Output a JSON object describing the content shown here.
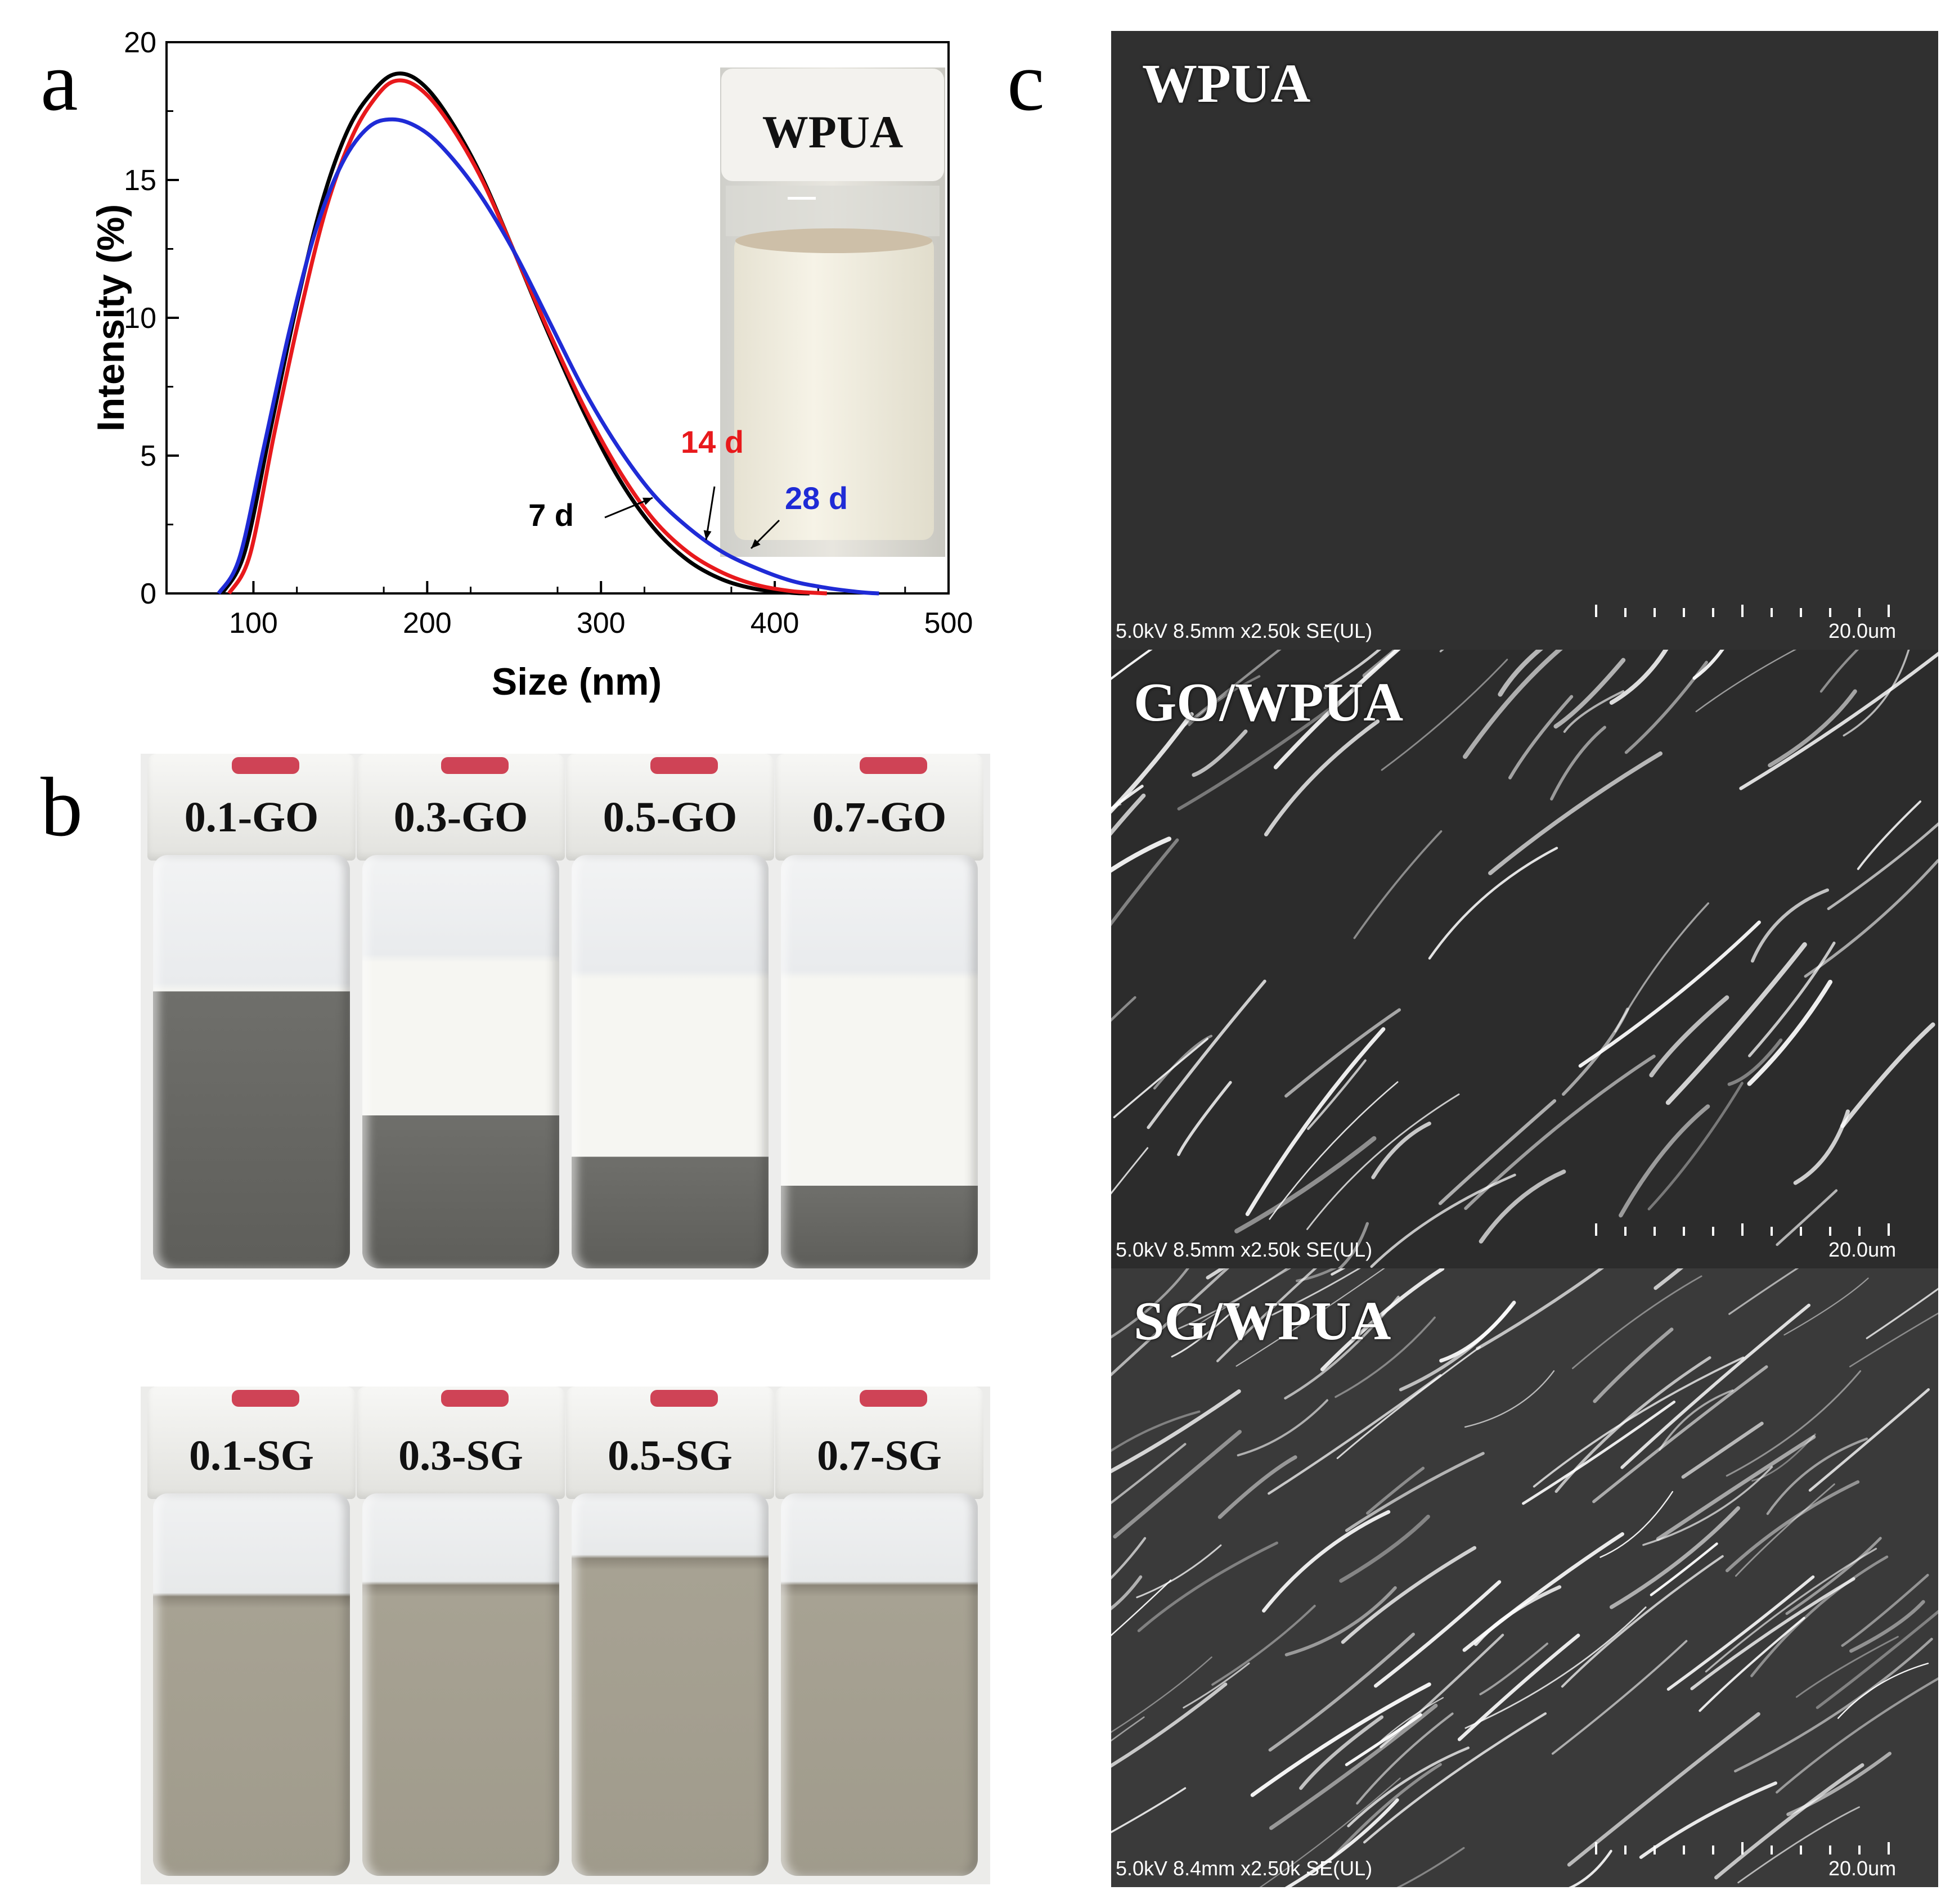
{
  "panels": {
    "a_letter": "a",
    "b_letter": "b",
    "c_letter": "c"
  },
  "chart_data": {
    "type": "line",
    "xlabel": "Size (nm)",
    "ylabel": "Intensity (%)",
    "xlim": [
      50,
      500
    ],
    "ylim": [
      0,
      20
    ],
    "xticks": [
      100,
      200,
      300,
      400,
      500
    ],
    "yticks": [
      0,
      5,
      10,
      15,
      20
    ],
    "legend": "none",
    "grid": false,
    "series": [
      {
        "name": "7 d",
        "color": "#000000",
        "start": 82,
        "peak_x": 182,
        "peak_y": 18.85,
        "points": [
          [
            82,
            0
          ],
          [
            95,
            1.5
          ],
          [
            110,
            6
          ],
          [
            125,
            10.5
          ],
          [
            140,
            14.3
          ],
          [
            155,
            16.9
          ],
          [
            170,
            18.3
          ],
          [
            182,
            18.85
          ],
          [
            195,
            18.6
          ],
          [
            210,
            17.5
          ],
          [
            230,
            15.3
          ],
          [
            250,
            12.4
          ],
          [
            270,
            9.4
          ],
          [
            290,
            6.6
          ],
          [
            310,
            4.2
          ],
          [
            330,
            2.4
          ],
          [
            350,
            1.2
          ],
          [
            370,
            0.5
          ],
          [
            390,
            0.15
          ],
          [
            410,
            0.02
          ],
          [
            420,
            0
          ]
        ]
      },
      {
        "name": "14 d",
        "color": "#e8191c",
        "start": 86,
        "peak_x": 182,
        "peak_y": 18.6,
        "points": [
          [
            86,
            0
          ],
          [
            98,
            1.4
          ],
          [
            112,
            5.8
          ],
          [
            127,
            10.2
          ],
          [
            142,
            14
          ],
          [
            157,
            16.6
          ],
          [
            171,
            18.05
          ],
          [
            182,
            18.6
          ],
          [
            195,
            18.35
          ],
          [
            210,
            17.3
          ],
          [
            230,
            15.2
          ],
          [
            250,
            12.4
          ],
          [
            270,
            9.5
          ],
          [
            290,
            6.8
          ],
          [
            310,
            4.5
          ],
          [
            330,
            2.7
          ],
          [
            350,
            1.5
          ],
          [
            370,
            0.75
          ],
          [
            390,
            0.3
          ],
          [
            410,
            0.08
          ],
          [
            430,
            0
          ]
        ]
      },
      {
        "name": "28 d",
        "color": "#1f2bd6",
        "start": 80,
        "peak_x": 180,
        "peak_y": 17.2,
        "points": [
          [
            80,
            0
          ],
          [
            92,
            1.3
          ],
          [
            106,
            5.3
          ],
          [
            121,
            9.6
          ],
          [
            136,
            13.2
          ],
          [
            151,
            15.6
          ],
          [
            166,
            16.9
          ],
          [
            180,
            17.2
          ],
          [
            195,
            16.9
          ],
          [
            210,
            16.1
          ],
          [
            230,
            14.5
          ],
          [
            250,
            12.4
          ],
          [
            270,
            9.9
          ],
          [
            290,
            7.4
          ],
          [
            310,
            5.3
          ],
          [
            330,
            3.6
          ],
          [
            350,
            2.4
          ],
          [
            370,
            1.5
          ],
          [
            390,
            0.9
          ],
          [
            410,
            0.45
          ],
          [
            430,
            0.2
          ],
          [
            450,
            0.04
          ],
          [
            460,
            0
          ]
        ]
      }
    ],
    "annotations": [
      {
        "text": "7 d",
        "color": "#000000"
      },
      {
        "text": "14 d",
        "color": "#e8191c"
      },
      {
        "text": "28 d",
        "color": "#1f2bd6"
      }
    ]
  },
  "inset": {
    "label": "WPUA"
  },
  "vials_go": {
    "labels": [
      "0.1-GO",
      "0.3-GO",
      "0.5-GO",
      "0.7-GO"
    ]
  },
  "vials_sg": {
    "labels": [
      "0.1-SG",
      "0.3-SG",
      "0.5-SG",
      "0.7-SG"
    ]
  },
  "sem": [
    {
      "title": "WPUA",
      "info": "5.0kV 8.5mm x2.50k SE(UL)",
      "scale": "20.0um"
    },
    {
      "title": "GO/WPUA",
      "info": "5.0kV 8.5mm x2.50k SE(UL)",
      "scale": "20.0um"
    },
    {
      "title": "SG/WPUA",
      "info": "5.0kV 8.4mm x2.50k SE(UL)",
      "scale": "20.0um"
    }
  ]
}
